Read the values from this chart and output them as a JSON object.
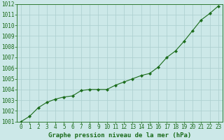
{
  "x": [
    0,
    1,
    2,
    3,
    4,
    5,
    6,
    7,
    8,
    9,
    10,
    11,
    12,
    13,
    14,
    15,
    16,
    17,
    18,
    19,
    20,
    21,
    22,
    23
  ],
  "y": [
    1001.0,
    1001.5,
    1002.3,
    1002.8,
    1003.1,
    1003.3,
    1003.4,
    1003.9,
    1004.0,
    1004.0,
    1004.0,
    1004.4,
    1004.7,
    1005.0,
    1005.3,
    1005.5,
    1006.1,
    1007.0,
    1007.6,
    1008.5,
    1009.5,
    1010.5,
    1011.1,
    1011.8
  ],
  "line_color": "#1a6b1a",
  "marker": "D",
  "marker_size": 2.2,
  "bg_color": "#cce8e8",
  "grid_color": "#aacece",
  "xlabel": "Graphe pression niveau de la mer (hPa)",
  "xlabel_fontsize": 6.5,
  "tick_fontsize": 5.5,
  "ylim": [
    1001,
    1012
  ],
  "xlim_min": -0.5,
  "xlim_max": 23.5,
  "yticks": [
    1001,
    1002,
    1003,
    1004,
    1005,
    1006,
    1007,
    1008,
    1009,
    1010,
    1011,
    1012
  ],
  "xticks": [
    0,
    1,
    2,
    3,
    4,
    5,
    6,
    7,
    8,
    9,
    10,
    11,
    12,
    13,
    14,
    15,
    16,
    17,
    18,
    19,
    20,
    21,
    22,
    23
  ],
  "xtick_labels": [
    "0",
    "1",
    "2",
    "3",
    "4",
    "5",
    "6",
    "7",
    "8",
    "9",
    "10",
    "11",
    "12",
    "13",
    "14",
    "15",
    "16",
    "17",
    "18",
    "19",
    "20",
    "21",
    "22",
    "23"
  ],
  "line_width": 0.8,
  "axes_border_color": "#1a6b1a",
  "tick_color": "#1a6b1a"
}
